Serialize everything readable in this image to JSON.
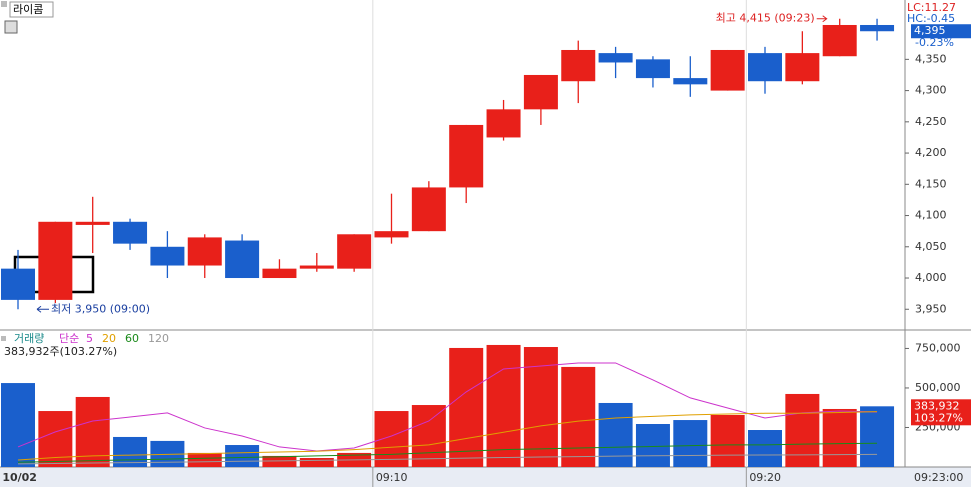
{
  "header": {
    "symbol": "라이콤",
    "lc": "LC:11.27",
    "hc": "HC:-0.45",
    "change": "-0.23%"
  },
  "chart_data": [
    {
      "type": "candlestick",
      "categories": [
        "10/02",
        null,
        null,
        null,
        null,
        null,
        null,
        null,
        null,
        null,
        "09:10",
        null,
        null,
        null,
        null,
        null,
        null,
        null,
        null,
        null,
        "09:20",
        null,
        null,
        null
      ],
      "cursor_label": "09:23:00",
      "open": [
        4015,
        3965,
        4085,
        4090,
        4050,
        4020,
        4060,
        4000,
        4015,
        4015,
        4065,
        4075,
        4145,
        4225,
        4270,
        4315,
        4360,
        4350,
        4320,
        4300,
        4360,
        4315,
        4355,
        4405
      ],
      "high": [
        4045,
        4090,
        4130,
        4095,
        4075,
        4070,
        4070,
        4030,
        4040,
        4070,
        4135,
        4155,
        4245,
        4285,
        4325,
        4380,
        4370,
        4355,
        4355,
        4365,
        4370,
        4395,
        4415,
        4415
      ],
      "low": [
        3950,
        3960,
        4040,
        4045,
        4000,
        4000,
        4000,
        4000,
        4010,
        4010,
        4055,
        4075,
        4120,
        4220,
        4245,
        4280,
        4320,
        4305,
        4290,
        4300,
        4295,
        4310,
        4355,
        4380
      ],
      "close": [
        3965,
        4090,
        4090,
        4055,
        4020,
        4065,
        4000,
        4015,
        4020,
        4070,
        4075,
        4145,
        4245,
        4270,
        4325,
        4365,
        4345,
        4320,
        4310,
        4365,
        4315,
        4360,
        4405,
        4395
      ],
      "up_color": "#e8201a",
      "down_color": "#1a5fcc",
      "ylim": [
        3920,
        4445
      ],
      "yticks": [
        {
          "value": 3950,
          "label": "3,950"
        },
        {
          "value": 4000,
          "label": "4,000"
        },
        {
          "value": 4050,
          "label": "4,050"
        },
        {
          "value": 4100,
          "label": "4,100"
        },
        {
          "value": 4150,
          "label": "4,150"
        },
        {
          "value": 4200,
          "label": "4,200"
        },
        {
          "value": 4250,
          "label": "4,250"
        },
        {
          "value": 4300,
          "label": "4,300"
        },
        {
          "value": 4350,
          "label": "4,350"
        }
      ],
      "last_price": {
        "value": 4395,
        "label": "4,395"
      },
      "high_annotation": {
        "value": 4415,
        "label": "최고 4,415 (09:23)"
      },
      "low_annotation": {
        "value": 3950,
        "label": "최저 3,950 (09:00)"
      }
    },
    {
      "type": "bar",
      "title": "거래량",
      "ma_label": "단순",
      "summary": "383,932주(103.27%)",
      "values": [
        531000,
        354000,
        443000,
        190000,
        165000,
        89000,
        139000,
        70000,
        57000,
        89000,
        354000,
        392000,
        753000,
        772000,
        759000,
        633000,
        405000,
        272000,
        297000,
        329000,
        234000,
        462000,
        367000,
        383932
      ],
      "last_value": {
        "value": 383932,
        "label": "383,932"
      },
      "last_ratio": "103.27%",
      "ylim": [
        0,
        835000
      ],
      "yticks": [
        {
          "value": 250000,
          "label": "250,000"
        },
        {
          "value": 500000,
          "label": "500,000"
        },
        {
          "value": 750000,
          "label": "750,000"
        }
      ],
      "series": [
        {
          "name": "5",
          "color": "#cc33cc",
          "values": [
            127000,
            222000,
            291000,
            316000,
            342000,
            247000,
            196000,
            127000,
            101000,
            120000,
            196000,
            291000,
            475000,
            620000,
            639000,
            658000,
            658000,
            551000,
            437000,
            373000,
            310000,
            342000,
            354000,
            348000
          ]
        },
        {
          "name": "20",
          "color": "#e0a000",
          "values": [
            44000,
            60000,
            70000,
            75000,
            80000,
            85000,
            90000,
            95000,
            100000,
            110000,
            125000,
            140000,
            180000,
            220000,
            260000,
            290000,
            310000,
            320000,
            330000,
            335000,
            340000,
            340000,
            345000,
            350000
          ]
        },
        {
          "name": "60",
          "color": "#1a8a1a",
          "values": [
            30000,
            35000,
            40000,
            45000,
            50000,
            55000,
            60000,
            65000,
            70000,
            75000,
            80000,
            90000,
            100000,
            110000,
            115000,
            120000,
            125000,
            130000,
            135000,
            140000,
            140000,
            145000,
            148000,
            150000
          ]
        },
        {
          "name": "120",
          "color": "#999999",
          "values": [
            20000,
            22000,
            25000,
            28000,
            30000,
            33000,
            36000,
            39000,
            42000,
            45000,
            48000,
            52000,
            56000,
            60000,
            63000,
            66000,
            69000,
            71000,
            73000,
            75000,
            76000,
            77000,
            78000,
            80000
          ]
        }
      ]
    }
  ]
}
